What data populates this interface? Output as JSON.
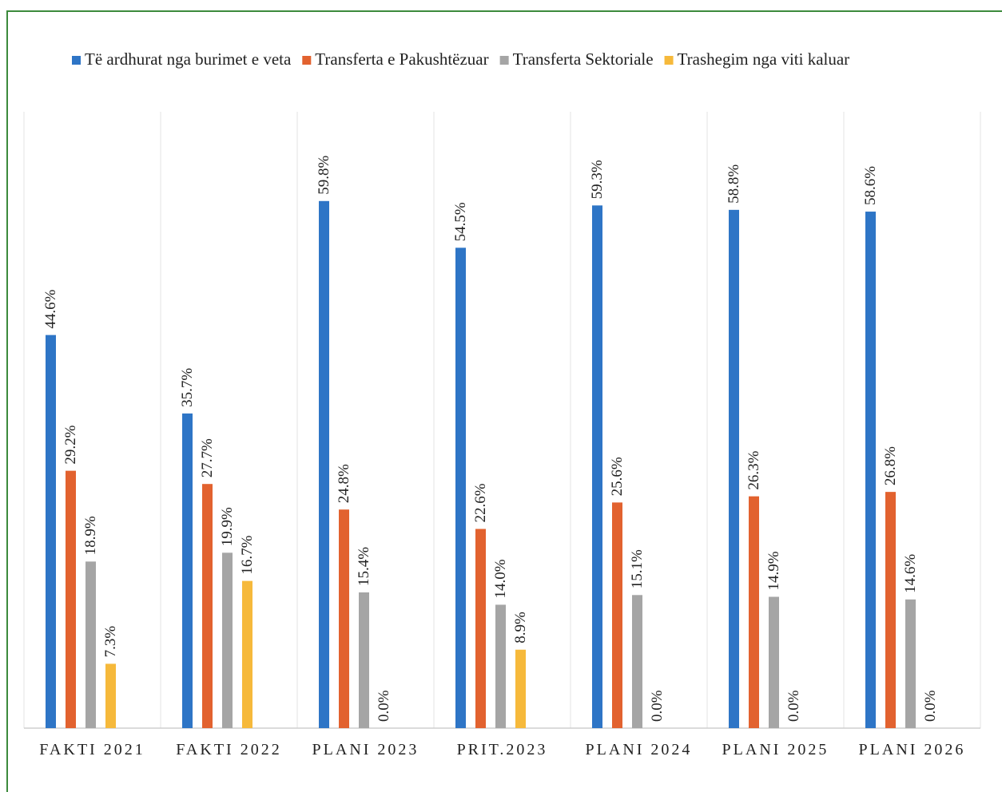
{
  "chart_data": {
    "type": "bar",
    "categories": [
      "FAKTI 2021",
      "FAKTI 2022",
      "PLANI 2023",
      "PRIT.2023",
      "PLANI 2024",
      "PLANI 2025",
      "PLANI 2026"
    ],
    "series": [
      {
        "name": "Të ardhurat nga burimet e veta",
        "color": "#2e75c6",
        "values": [
          44.6,
          35.7,
          59.8,
          54.5,
          59.3,
          58.8,
          58.6
        ],
        "value_labels": [
          "44.6%",
          "35.7%",
          "59.8%",
          "54.5%",
          "59.3%",
          "58.8%",
          "58.6%"
        ]
      },
      {
        "name": "Transferta e Pakushtëzuar",
        "color": "#e2622f",
        "values": [
          29.2,
          27.7,
          24.8,
          22.6,
          25.6,
          26.3,
          26.8
        ],
        "value_labels": [
          "29.2%",
          "27.7%",
          "24.8%",
          "22.6%",
          "25.6%",
          "26.3%",
          "26.8%"
        ]
      },
      {
        "name": "Transferta Sektoriale",
        "color": "#a5a5a5",
        "values": [
          18.9,
          19.9,
          15.4,
          14.0,
          15.1,
          14.9,
          14.6
        ],
        "value_labels": [
          "18.9%",
          "19.9%",
          "15.4%",
          "14.0%",
          "15.1%",
          "14.9%",
          "14.6%"
        ]
      },
      {
        "name": "Trashegim nga viti kaluar",
        "color": "#f6b93b",
        "values": [
          7.3,
          16.7,
          0.0,
          8.9,
          0.0,
          0.0,
          0.0
        ],
        "value_labels": [
          "7.3%",
          "16.7%",
          "0.0%",
          "8.9%",
          "0.0%",
          "0.0%",
          "0.0%"
        ]
      }
    ],
    "legend": "top"
  }
}
